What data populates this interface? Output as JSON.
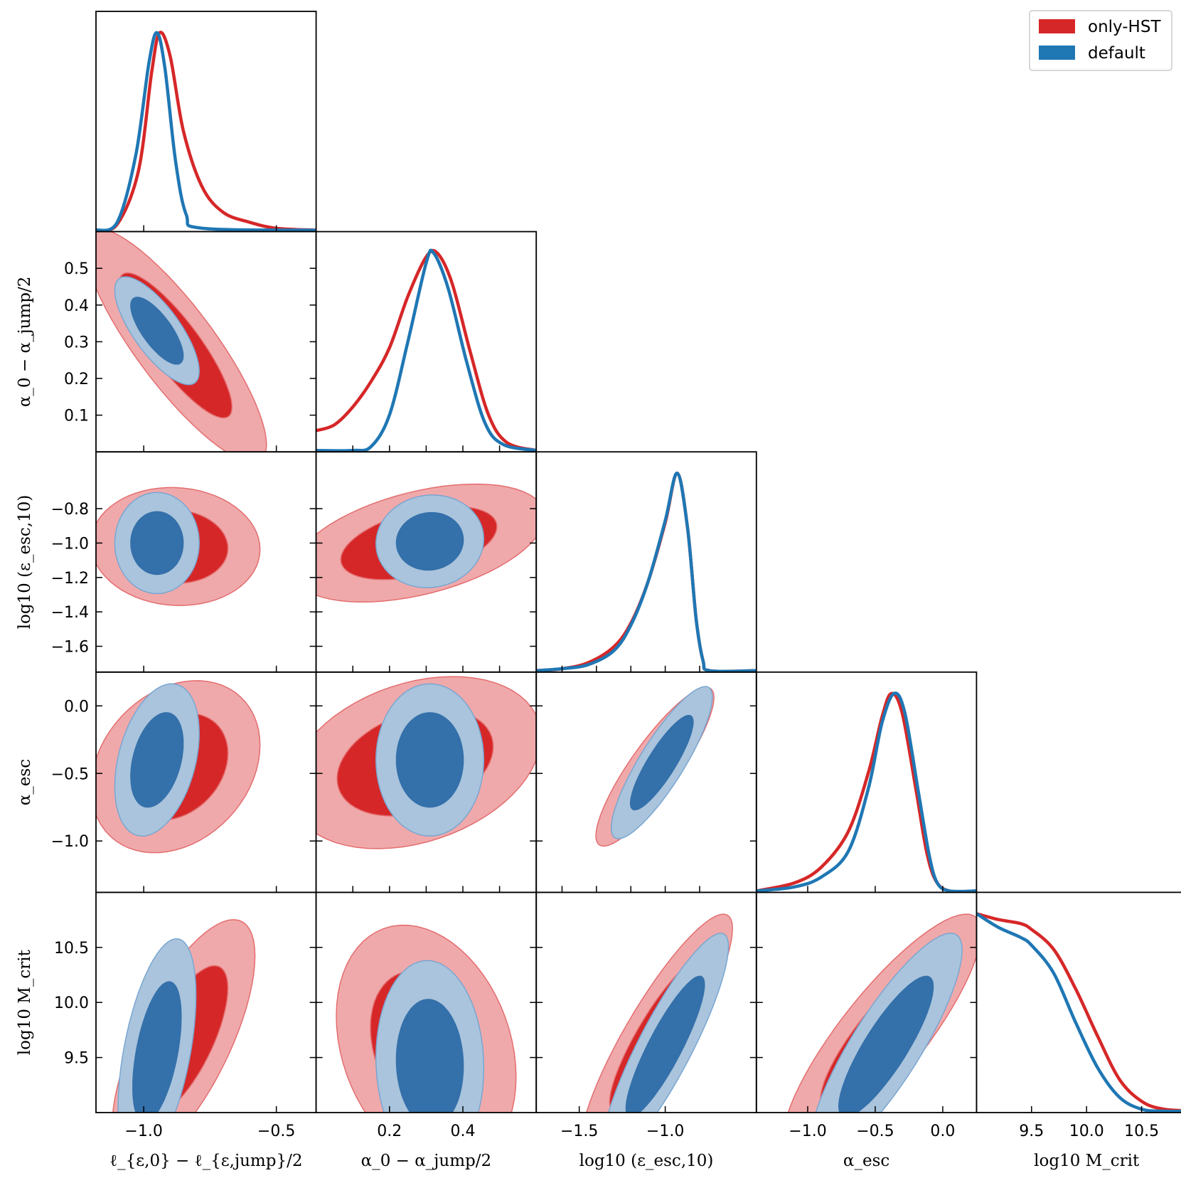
{
  "chart_data": {
    "type": "corner",
    "legend": {
      "placement": "top-right",
      "entries": [
        {
          "label": "only-HST",
          "color": "#d62728"
        },
        {
          "label": "default",
          "color": "#1f77b4"
        }
      ]
    },
    "parameters": [
      {
        "id": "l_eps",
        "label": "ℓ_{ε,0} − ℓ_{ε,jump}/2",
        "range": [
          -1.18,
          -0.35
        ],
        "ticks": [
          -1.0,
          -0.5
        ],
        "tick_labels": [
          "−1.0",
          "−0.5"
        ]
      },
      {
        "id": "alpha0",
        "label": "α_0 − α_jump/2",
        "range": [
          0.0,
          0.6
        ],
        "ticks": [
          0.1,
          0.2,
          0.3,
          0.4,
          0.5
        ],
        "tick_labels": [
          "0.1",
          "0.2",
          "0.3",
          "0.4",
          "0.5"
        ],
        "bottom_ticks": [
          0.2,
          0.4
        ],
        "bottom_tick_labels": [
          "0.2",
          "0.4"
        ]
      },
      {
        "id": "log_eesc",
        "label": "log10 (ε_esc,10)",
        "range": [
          -1.75,
          -0.47
        ],
        "ticks": [
          -1.6,
          -1.4,
          -1.2,
          -1.0,
          -0.8
        ],
        "tick_labels": [
          "−1.6",
          "−1.4",
          "−1.2",
          "−1.0",
          "−0.8"
        ],
        "bottom_ticks": [
          -1.5,
          -1.0
        ],
        "bottom_tick_labels": [
          "−1.5",
          "−1.0"
        ]
      },
      {
        "id": "alpha_esc",
        "label": "α_esc",
        "range": [
          -1.38,
          0.25
        ],
        "ticks": [
          -1.0,
          -0.5,
          0.0
        ],
        "tick_labels": [
          "−1.0",
          "−0.5",
          "0.0"
        ]
      },
      {
        "id": "log_mcrit",
        "label": "log10 M_crit",
        "range": [
          9.0,
          11.0
        ],
        "ticks": [
          9.5,
          10.0,
          10.5
        ],
        "tick_labels": [
          "9.5",
          "10.0",
          "10.5"
        ]
      }
    ],
    "marginals": {
      "l_eps": {
        "only-HST": [
          [
            -1.18,
            0.0
          ],
          [
            -1.1,
            0.03
          ],
          [
            -1.02,
            0.3
          ],
          [
            -0.97,
            0.8
          ],
          [
            -0.94,
            1.0
          ],
          [
            -0.9,
            0.88
          ],
          [
            -0.85,
            0.5
          ],
          [
            -0.78,
            0.22
          ],
          [
            -0.7,
            0.09
          ],
          [
            -0.6,
            0.04
          ],
          [
            -0.5,
            0.01
          ],
          [
            -0.35,
            0.0
          ]
        ],
        "default": [
          [
            -1.18,
            0.0
          ],
          [
            -1.1,
            0.04
          ],
          [
            -1.03,
            0.38
          ],
          [
            -0.98,
            0.85
          ],
          [
            -0.95,
            1.0
          ],
          [
            -0.92,
            0.82
          ],
          [
            -0.88,
            0.35
          ],
          [
            -0.84,
            0.08
          ],
          [
            -0.78,
            0.01
          ],
          [
            -0.35,
            0.0
          ]
        ]
      },
      "alpha0": {
        "only-HST": [
          [
            0.0,
            0.1
          ],
          [
            0.05,
            0.13
          ],
          [
            0.1,
            0.22
          ],
          [
            0.15,
            0.35
          ],
          [
            0.2,
            0.52
          ],
          [
            0.25,
            0.78
          ],
          [
            0.3,
            0.98
          ],
          [
            0.33,
            1.0
          ],
          [
            0.37,
            0.85
          ],
          [
            0.42,
            0.5
          ],
          [
            0.47,
            0.18
          ],
          [
            0.52,
            0.04
          ],
          [
            0.6,
            0.0
          ]
        ],
        "default": [
          [
            0.0,
            0.0
          ],
          [
            0.1,
            0.0
          ],
          [
            0.15,
            0.02
          ],
          [
            0.2,
            0.18
          ],
          [
            0.25,
            0.55
          ],
          [
            0.3,
            0.95
          ],
          [
            0.32,
            1.0
          ],
          [
            0.36,
            0.82
          ],
          [
            0.41,
            0.45
          ],
          [
            0.46,
            0.14
          ],
          [
            0.51,
            0.03
          ],
          [
            0.6,
            0.0
          ]
        ]
      },
      "log_eesc": {
        "only-HST": [
          [
            -1.75,
            0.0
          ],
          [
            -1.6,
            0.01
          ],
          [
            -1.45,
            0.04
          ],
          [
            -1.3,
            0.12
          ],
          [
            -1.2,
            0.24
          ],
          [
            -1.1,
            0.45
          ],
          [
            -1.0,
            0.75
          ],
          [
            -0.93,
            1.0
          ],
          [
            -0.87,
            0.72
          ],
          [
            -0.82,
            0.26
          ],
          [
            -0.78,
            0.05
          ],
          [
            -0.74,
            0.0
          ],
          [
            -0.47,
            0.0
          ]
        ],
        "default": [
          [
            -1.75,
            0.0
          ],
          [
            -1.6,
            0.01
          ],
          [
            -1.45,
            0.03
          ],
          [
            -1.3,
            0.1
          ],
          [
            -1.2,
            0.23
          ],
          [
            -1.1,
            0.45
          ],
          [
            -1.0,
            0.76
          ],
          [
            -0.93,
            1.0
          ],
          [
            -0.87,
            0.72
          ],
          [
            -0.82,
            0.26
          ],
          [
            -0.78,
            0.05
          ],
          [
            -0.74,
            0.0
          ],
          [
            -0.47,
            0.0
          ]
        ]
      },
      "alpha_esc": {
        "only-HST": [
          [
            -1.38,
            0.0
          ],
          [
            -1.1,
            0.04
          ],
          [
            -0.9,
            0.12
          ],
          [
            -0.7,
            0.3
          ],
          [
            -0.55,
            0.6
          ],
          [
            -0.45,
            0.88
          ],
          [
            -0.38,
            1.0
          ],
          [
            -0.3,
            0.9
          ],
          [
            -0.2,
            0.52
          ],
          [
            -0.12,
            0.2
          ],
          [
            -0.05,
            0.05
          ],
          [
            0.05,
            0.0
          ],
          [
            0.25,
            0.0
          ]
        ],
        "default": [
          [
            -1.38,
            0.0
          ],
          [
            -1.1,
            0.02
          ],
          [
            -0.9,
            0.07
          ],
          [
            -0.7,
            0.2
          ],
          [
            -0.55,
            0.52
          ],
          [
            -0.45,
            0.85
          ],
          [
            -0.36,
            1.0
          ],
          [
            -0.28,
            0.9
          ],
          [
            -0.18,
            0.5
          ],
          [
            -0.1,
            0.18
          ],
          [
            -0.04,
            0.04
          ],
          [
            0.05,
            0.0
          ],
          [
            0.25,
            0.0
          ]
        ]
      },
      "log_mcrit": {
        "only-HST": [
          [
            9.0,
            1.0
          ],
          [
            9.2,
            0.97
          ],
          [
            9.4,
            0.95
          ],
          [
            9.5,
            0.92
          ],
          [
            9.7,
            0.82
          ],
          [
            9.9,
            0.62
          ],
          [
            10.1,
            0.38
          ],
          [
            10.3,
            0.16
          ],
          [
            10.5,
            0.05
          ],
          [
            10.7,
            0.01
          ],
          [
            11.0,
            0.0
          ]
        ],
        "default": [
          [
            9.0,
            1.0
          ],
          [
            9.2,
            0.93
          ],
          [
            9.4,
            0.88
          ],
          [
            9.5,
            0.84
          ],
          [
            9.7,
            0.7
          ],
          [
            9.9,
            0.45
          ],
          [
            10.1,
            0.22
          ],
          [
            10.3,
            0.07
          ],
          [
            10.5,
            0.01
          ],
          [
            10.7,
            0.0
          ],
          [
            11.0,
            0.0
          ]
        ]
      }
    },
    "contours": {
      "l_eps|alpha0": {
        "only-HST": {
          "center": [
            -0.88,
            0.29
          ],
          "sigma": [
            0.14,
            0.13
          ],
          "rho": -0.85
        },
        "default": {
          "center": [
            -0.95,
            0.33
          ],
          "sigma": [
            0.065,
            0.06
          ],
          "rho": -0.75
        }
      },
      "l_eps|log_eesc": {
        "only-HST": {
          "center": [
            -0.88,
            -1.02
          ],
          "sigma": [
            0.13,
            0.14
          ],
          "rho": -0.05
        },
        "default": {
          "center": [
            -0.95,
            -1.0
          ],
          "sigma": [
            0.065,
            0.12
          ],
          "rho": 0.0
        }
      },
      "l_eps|alpha_esc": {
        "only-HST": {
          "center": [
            -0.88,
            -0.45
          ],
          "sigma": [
            0.13,
            0.26
          ],
          "rho": 0.25
        },
        "default": {
          "center": [
            -0.95,
            -0.4
          ],
          "sigma": [
            0.065,
            0.23
          ],
          "rho": 0.35
        }
      },
      "l_eps|log_mcrit": {
        "only-HST": {
          "center": [
            -0.85,
            9.65
          ],
          "sigma": [
            0.11,
            0.45
          ],
          "rho": 0.7
        },
        "default": {
          "center": [
            -0.95,
            9.55
          ],
          "sigma": [
            0.06,
            0.42
          ],
          "rho": 0.5
        }
      },
      "alpha0|log_eesc": {
        "only-HST": {
          "center": [
            0.28,
            -1.0
          ],
          "sigma": [
            0.14,
            0.14
          ],
          "rho": 0.45
        },
        "default": {
          "center": [
            0.31,
            -0.99
          ],
          "sigma": [
            0.06,
            0.11
          ],
          "rho": 0.05
        }
      },
      "alpha0|alpha_esc": {
        "only-HST": {
          "center": [
            0.27,
            -0.42
          ],
          "sigma": [
            0.14,
            0.26
          ],
          "rho": 0.3
        },
        "default": {
          "center": [
            0.31,
            -0.4
          ],
          "sigma": [
            0.06,
            0.23
          ],
          "rho": 0.0
        }
      },
      "alpha0|log_mcrit": {
        "only-HST": {
          "center": [
            0.3,
            9.6
          ],
          "sigma": [
            0.1,
            0.45
          ],
          "rho": -0.25
        },
        "default": {
          "center": [
            0.31,
            9.45
          ],
          "sigma": [
            0.06,
            0.38
          ],
          "rho": -0.05
        }
      },
      "log_eesc|alpha_esc": {
        "only-HST": {
          "center": [
            -1.06,
            -0.45
          ],
          "sigma": [
            0.14,
            0.24
          ],
          "rho": 0.87
        },
        "default": {
          "center": [
            -1.02,
            -0.42
          ],
          "sigma": [
            0.12,
            0.23
          ],
          "rho": 0.86
        }
      },
      "log_eesc|log_mcrit": {
        "only-HST": {
          "center": [
            -1.05,
            9.7
          ],
          "sigma": [
            0.18,
            0.45
          ],
          "rho": 0.88
        },
        "default": {
          "center": [
            -1.0,
            9.6
          ],
          "sigma": [
            0.15,
            0.42
          ],
          "rho": 0.88
        }
      },
      "alpha_esc|log_mcrit": {
        "only-HST": {
          "center": [
            -0.45,
            9.7
          ],
          "sigma": [
            0.3,
            0.45
          ],
          "rho": 0.85
        },
        "default": {
          "center": [
            -0.42,
            9.6
          ],
          "sigma": [
            0.23,
            0.42
          ],
          "rho": 0.85
        }
      }
    },
    "colors": {
      "hst_line": "#d62728",
      "hst_inner": "#d62728",
      "hst_outer": "#f0a9aa",
      "def_line": "#1f77b4",
      "def_inner": "#3470aa",
      "def_outer": "#a9c4dc",
      "def_edge": "#7aa6d2",
      "hst_edge": "#e36d6f"
    },
    "grid": false
  }
}
